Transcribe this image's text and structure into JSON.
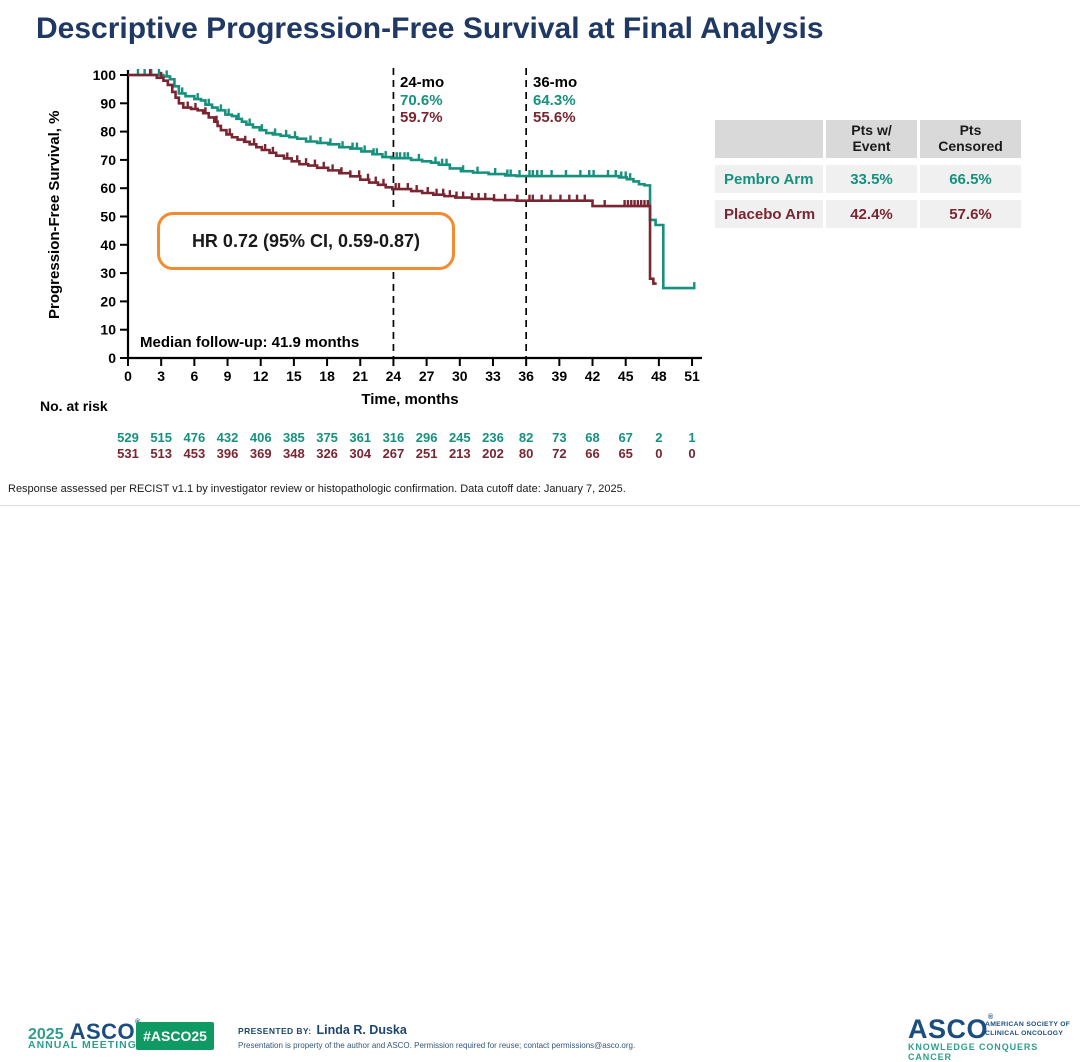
{
  "slide": {
    "title": "Descriptive Progression-Free Survival at Final Analysis",
    "footnote": "Response assessed per RECIST v1.1 by investigator review or histopathologic confirmation. Data cutoff date: January 7, 2025."
  },
  "colors": {
    "title_navy": "#1F3864",
    "pembro_teal": "#16917E",
    "placebo_maroon": "#7A2532",
    "hr_box_orange": "#F28B31",
    "asco_navy": "#1B4E7E",
    "asco_green": "#2E9E8E",
    "badge_green": "#0E9A62",
    "table_header_gray": "#D9D9D9",
    "table_row_gray": "#F0F0F0"
  },
  "chart_data": {
    "type": "line",
    "subtype": "kaplan-meier-step",
    "title": "",
    "xlabel": "Time, months",
    "ylabel": "Progression-Free Survival, %",
    "xlim": [
      0,
      51
    ],
    "ylim": [
      0,
      100
    ],
    "grid": false,
    "xticks": [
      0,
      3,
      6,
      9,
      12,
      15,
      18,
      21,
      24,
      27,
      30,
      33,
      36,
      39,
      42,
      45,
      48,
      51
    ],
    "yticks": [
      0,
      10,
      20,
      30,
      40,
      50,
      60,
      70,
      80,
      90,
      100
    ],
    "markers": [
      {
        "x": 24,
        "label": "24-mo",
        "pembro": "70.6%",
        "placebo": "59.7%"
      },
      {
        "x": 36,
        "label": "36-mo",
        "pembro": "64.3%",
        "placebo": "55.6%"
      }
    ],
    "annotations": {
      "hr": "HR 0.72 (95% CI, 0.59-0.87)",
      "median_followup": "Median follow-up: 41.9 months"
    },
    "series": [
      {
        "name": "Pembro Arm",
        "color": "#16917E",
        "steps": [
          [
            0,
            100
          ],
          [
            3.2,
            99.5
          ],
          [
            3.8,
            98.5
          ],
          [
            4.2,
            96
          ],
          [
            4.6,
            93.5
          ],
          [
            5.2,
            92.5
          ],
          [
            6.0,
            91.5
          ],
          [
            6.6,
            91
          ],
          [
            7.0,
            89.5
          ],
          [
            7.6,
            88.5
          ],
          [
            8.1,
            87.5
          ],
          [
            8.8,
            86
          ],
          [
            9.4,
            85.5
          ],
          [
            9.8,
            84.5
          ],
          [
            10.3,
            83.5
          ],
          [
            10.7,
            82.5
          ],
          [
            11.3,
            81.5
          ],
          [
            11.9,
            80.5
          ],
          [
            12.5,
            79.5
          ],
          [
            13.1,
            79
          ],
          [
            13.8,
            78.5
          ],
          [
            14.6,
            78
          ],
          [
            15.3,
            77.5
          ],
          [
            16.1,
            76.5
          ],
          [
            17.1,
            76
          ],
          [
            18.1,
            75.5
          ],
          [
            19.1,
            74.5
          ],
          [
            20.1,
            74
          ],
          [
            21.1,
            73
          ],
          [
            22.1,
            72
          ],
          [
            23.0,
            71
          ],
          [
            23.8,
            70.6
          ],
          [
            25.6,
            70
          ],
          [
            26.6,
            69.5
          ],
          [
            27.4,
            69
          ],
          [
            28.1,
            68.3
          ],
          [
            29.1,
            67
          ],
          [
            30.1,
            66
          ],
          [
            31.2,
            65.5
          ],
          [
            32.6,
            65
          ],
          [
            34.1,
            64.5
          ],
          [
            35.1,
            64.3
          ],
          [
            44.4,
            63.8
          ],
          [
            45.1,
            63.2
          ],
          [
            45.7,
            62.4
          ],
          [
            46.2,
            61.4
          ],
          [
            46.7,
            61
          ],
          [
            47.2,
            48.8
          ],
          [
            47.7,
            47
          ],
          [
            48.4,
            24.7
          ]
        ],
        "end_month": 51.3,
        "censor_months": [
          0.9,
          1.5,
          2.1,
          2.8,
          3.5,
          4.9,
          6.3,
          7.3,
          8.4,
          9.1,
          10.0,
          11.0,
          12.1,
          13.3,
          14.3,
          15.1,
          16.5,
          17.4,
          18.3,
          19.4,
          20.3,
          20.7,
          21.4,
          22.2,
          22.5,
          23.3,
          24.3,
          24.6,
          25.0,
          25.3,
          26.3,
          27.8,
          28.4,
          28.8,
          30.3,
          31.6,
          33.2,
          34.3,
          34.6,
          35.4,
          36.3,
          36.6,
          37.0,
          37.4,
          38.3,
          39.6,
          40.9,
          41.7,
          42.1,
          43.4,
          44.1,
          44.6,
          45.0,
          45.4,
          51.2
        ]
      },
      {
        "name": "Placebo Arm",
        "color": "#7A2532",
        "steps": [
          [
            0,
            100
          ],
          [
            2.6,
            99
          ],
          [
            3.2,
            98
          ],
          [
            3.6,
            96.5
          ],
          [
            4.0,
            94
          ],
          [
            4.3,
            92
          ],
          [
            4.6,
            90
          ],
          [
            5.0,
            88.5
          ],
          [
            5.7,
            88
          ],
          [
            6.3,
            87.5
          ],
          [
            6.8,
            86.5
          ],
          [
            7.3,
            85
          ],
          [
            7.8,
            83.5
          ],
          [
            8.1,
            82
          ],
          [
            8.4,
            80.5
          ],
          [
            8.9,
            79
          ],
          [
            9.4,
            78
          ],
          [
            9.9,
            77.2
          ],
          [
            10.5,
            76.4
          ],
          [
            11.0,
            75.5
          ],
          [
            11.6,
            74.5
          ],
          [
            12.1,
            73.5
          ],
          [
            12.8,
            72.5
          ],
          [
            13.4,
            71.5
          ],
          [
            14.1,
            70.5
          ],
          [
            14.8,
            69.5
          ],
          [
            15.5,
            68.5
          ],
          [
            16.3,
            68
          ],
          [
            17.1,
            67.2
          ],
          [
            18.1,
            66.3
          ],
          [
            19.1,
            65.3
          ],
          [
            20.1,
            64.2
          ],
          [
            21.0,
            63
          ],
          [
            21.8,
            62
          ],
          [
            22.6,
            61.2
          ],
          [
            23.3,
            60.3
          ],
          [
            23.9,
            59.7
          ],
          [
            25.6,
            59
          ],
          [
            26.6,
            58.3
          ],
          [
            27.6,
            57.7
          ],
          [
            28.6,
            57.2
          ],
          [
            29.6,
            56.7
          ],
          [
            31.1,
            56.2
          ],
          [
            33.1,
            55.8
          ],
          [
            35.1,
            55.6
          ],
          [
            42.0,
            53.7
          ],
          [
            47.2,
            28
          ],
          [
            47.5,
            26.3
          ]
        ],
        "end_month": 47.8,
        "censor_months": [
          2.0,
          3.0,
          5.4,
          6.1,
          7.0,
          8.0,
          9.2,
          10.6,
          11.4,
          12.4,
          13.1,
          14.4,
          15.3,
          16.1,
          16.9,
          17.7,
          18.5,
          19.3,
          20.1,
          20.9,
          21.7,
          22.4,
          23.1,
          24.2,
          24.5,
          25.3,
          26.1,
          27.1,
          27.9,
          28.5,
          29.1,
          29.7,
          30.3,
          31.1,
          31.7,
          32.3,
          33.1,
          34.1,
          35.2,
          36.3,
          36.6,
          37.4,
          38.2,
          39.1,
          39.9,
          40.6,
          41.3,
          43.1,
          44.9,
          45.2,
          45.5,
          45.8,
          46.1,
          46.4,
          46.7,
          47.0
        ]
      }
    ],
    "at_risk": {
      "label": "No. at risk",
      "months": [
        0,
        3,
        6,
        9,
        12,
        15,
        18,
        21,
        24,
        27,
        30,
        33,
        36,
        39,
        42,
        45,
        48,
        51
      ],
      "rows": [
        {
          "series": "Pembro Arm",
          "color": "#16917E",
          "values": [
            "529",
            "515",
            "476",
            "432",
            "406",
            "385",
            "375",
            "361",
            "316",
            "296",
            "245",
            "236",
            "82",
            "73",
            "68",
            "67",
            "2",
            "1"
          ]
        },
        {
          "series": "Placebo Arm",
          "color": "#7A2532",
          "values": [
            "531",
            "513",
            "453",
            "396",
            "369",
            "348",
            "326",
            "304",
            "267",
            "251",
            "213",
            "202",
            "80",
            "72",
            "66",
            "65",
            "0",
            "0"
          ]
        }
      ]
    }
  },
  "side_table": {
    "headers": [
      "",
      "Pts w/ Event",
      "Pts Censored"
    ],
    "rows": [
      {
        "label": "Pembro Arm",
        "event": "33.5%",
        "censored": "66.5%"
      },
      {
        "label": "Placebo Arm",
        "event": "42.4%",
        "censored": "57.6%"
      }
    ]
  },
  "footer_bar": {
    "meeting_year": "2025",
    "meeting_asco": "ASCO",
    "meeting_reg": "®",
    "meeting_annual": "ANNUAL MEETING",
    "hashtag": "#ASCO25",
    "presented_by_label": "PRESENTED BY:",
    "presenter": "Linda R. Duska",
    "disclaimer": "Presentation is property of the author and ASCO. Permission required for reuse; contact permissions@asco.org.",
    "asco_logo_name": "ASCO",
    "asco_logo_reg": "®",
    "asco_society_line1": "AMERICAN SOCIETY OF",
    "asco_society_line2": "CLINICAL ONCOLOGY",
    "asco_tagline": "KNOWLEDGE CONQUERS CANCER"
  }
}
